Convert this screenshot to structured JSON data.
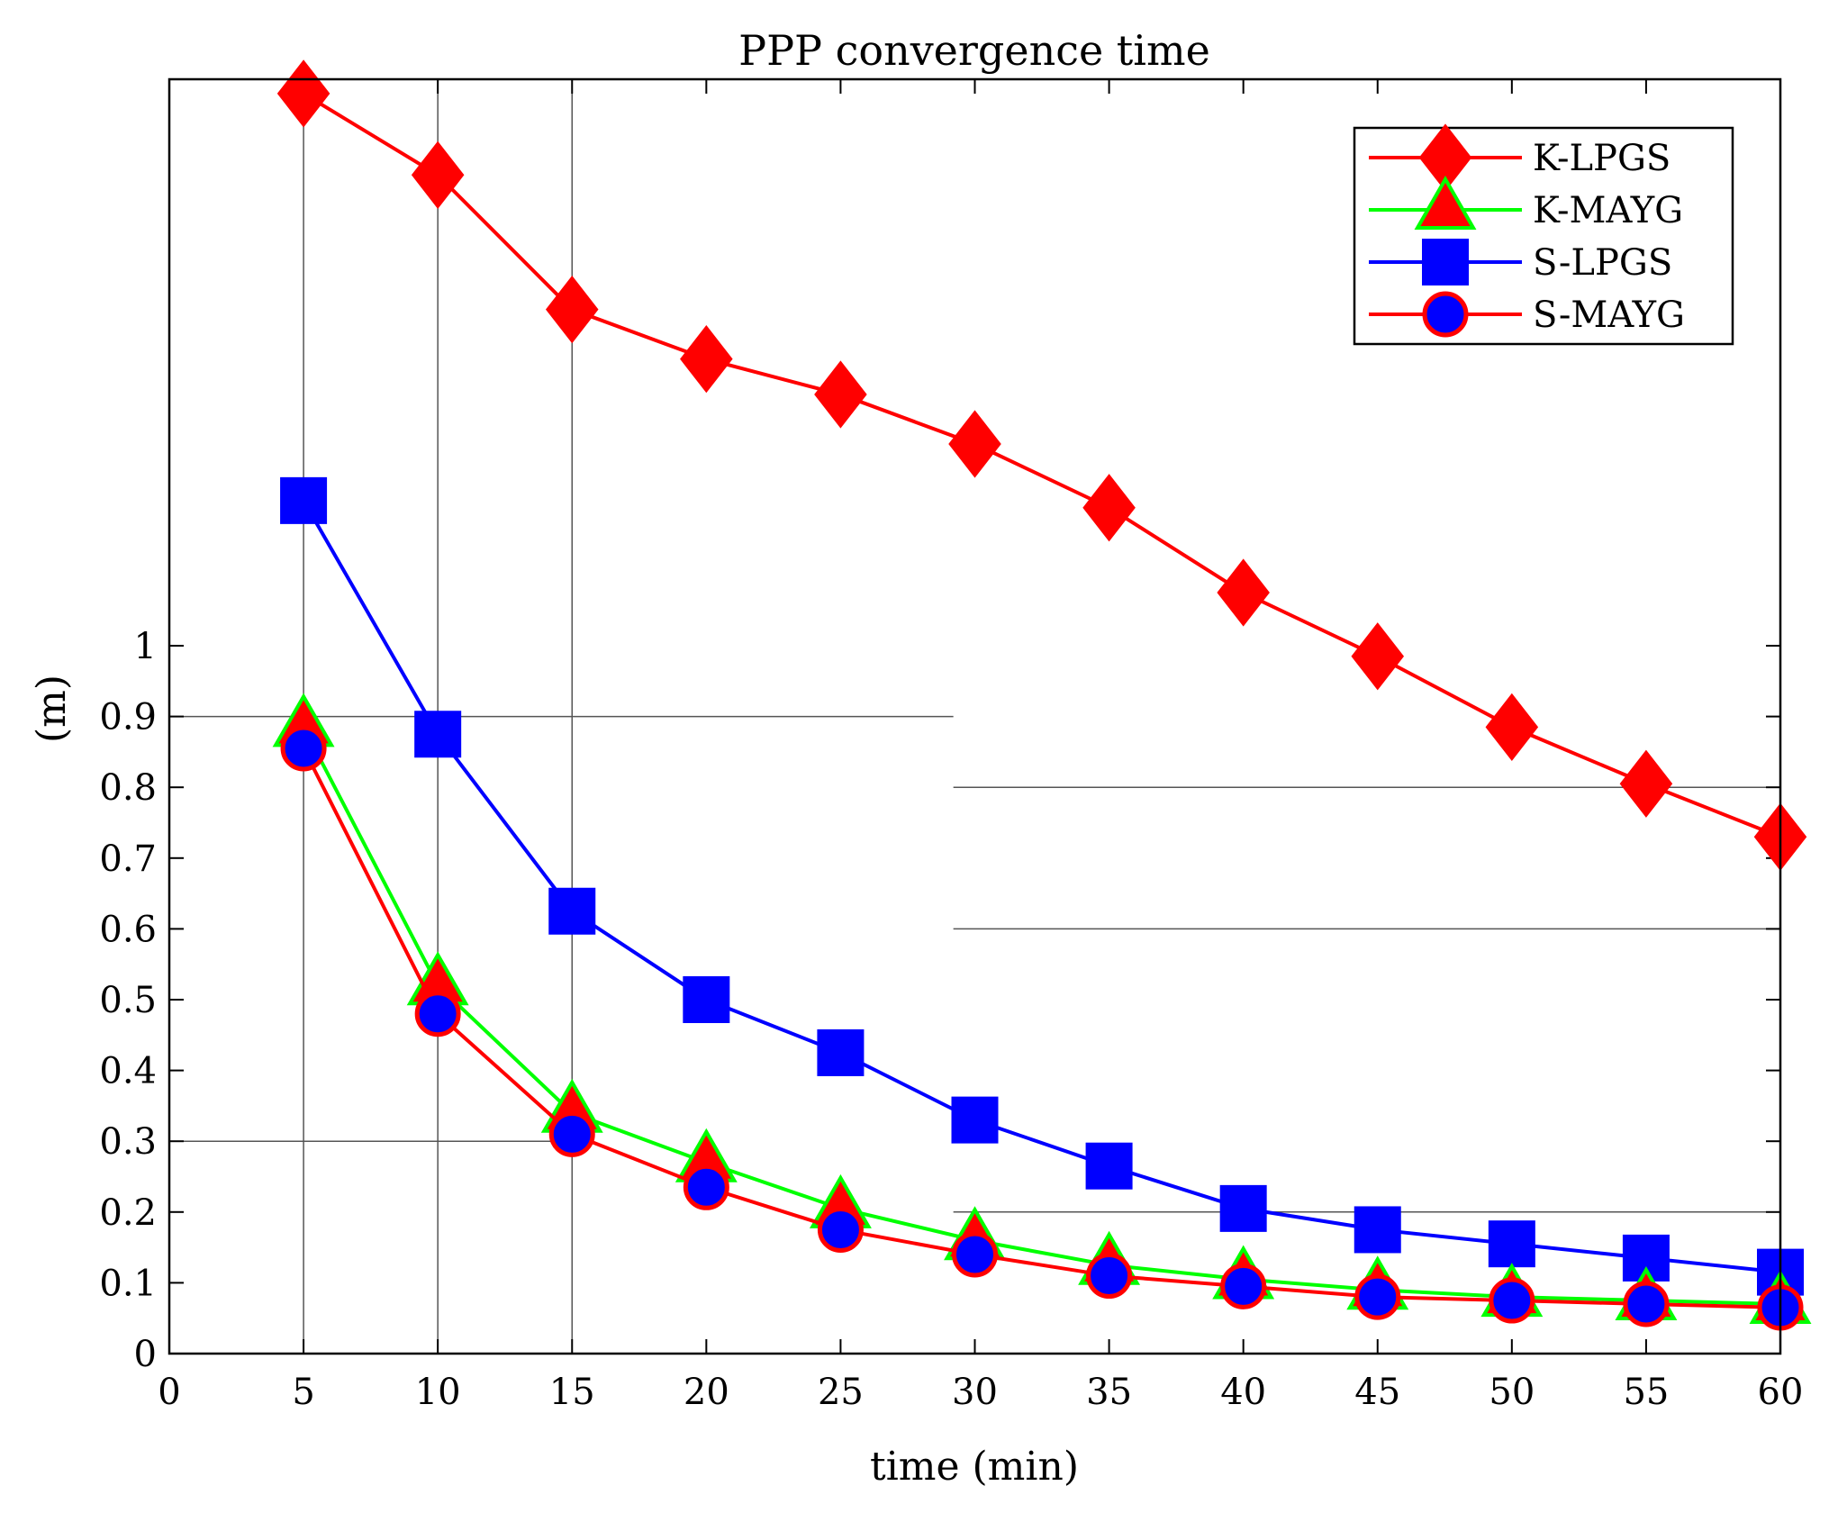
{
  "chart_data": {
    "type": "line",
    "title": "PPP convergence time",
    "xlabel": "time (min)",
    "ylabel": "(m)",
    "xlim": [
      0,
      60
    ],
    "ylim": [
      0,
      1.78
    ],
    "xticks": [
      0,
      5,
      10,
      15,
      20,
      25,
      30,
      35,
      40,
      45,
      50,
      55,
      60
    ],
    "yticks": [
      0,
      0.1,
      0.2,
      0.3,
      0.4,
      0.5,
      0.6,
      0.7,
      0.8,
      0.9,
      1
    ],
    "ytick_labels": [
      "0",
      "0.1",
      "0.2",
      "0.3",
      "0.4",
      "0.5",
      "0.6",
      "0.7",
      "0.8",
      "0.9",
      "1"
    ],
    "legend_position": "top-right",
    "reference_lines": {
      "vertical": [
        5,
        10,
        15
      ],
      "horizontal": [
        {
          "y": 0.9,
          "x_from": 0,
          "x_to": 29.2
        },
        {
          "y": 0.3,
          "x_from": 0,
          "x_to": 15
        },
        {
          "y": 0.8,
          "x_from": 29.2,
          "x_to": 60
        },
        {
          "y": 0.6,
          "x_from": 29.2,
          "x_to": 60
        },
        {
          "y": 0.2,
          "x_from": 29.2,
          "x_to": 60
        }
      ]
    },
    "x": [
      5,
      10,
      15,
      20,
      25,
      30,
      35,
      40,
      45,
      50,
      55,
      60
    ],
    "series": [
      {
        "name": "K-LPGS",
        "marker": "diamond",
        "line_color": "#ff0000",
        "marker_fill": "#ff0000",
        "marker_edge": "#ff0000",
        "values": [
          1.78,
          1.665,
          1.475,
          1.405,
          1.355,
          1.285,
          1.195,
          1.075,
          0.985,
          0.885,
          0.805,
          0.73
        ]
      },
      {
        "name": "K-MAYG",
        "marker": "triangle",
        "line_color": "#00ff00",
        "marker_fill": "#ff0000",
        "marker_edge": "#00ff00",
        "values": [
          0.885,
          0.52,
          0.34,
          0.27,
          0.205,
          0.16,
          0.125,
          0.105,
          0.09,
          0.08,
          0.075,
          0.07
        ]
      },
      {
        "name": "S-LPGS",
        "marker": "square",
        "line_color": "#0000ff",
        "marker_fill": "#0000ff",
        "marker_edge": "#0000ff",
        "values": [
          1.205,
          0.875,
          0.625,
          0.5,
          0.425,
          0.33,
          0.265,
          0.205,
          0.175,
          0.155,
          0.135,
          0.115
        ]
      },
      {
        "name": "S-MAYG",
        "marker": "circle",
        "line_color": "#ff0000",
        "marker_fill": "#0000ff",
        "marker_edge": "#ff0000",
        "values": [
          0.855,
          0.48,
          0.31,
          0.235,
          0.175,
          0.14,
          0.11,
          0.095,
          0.08,
          0.075,
          0.07,
          0.065
        ]
      }
    ]
  }
}
